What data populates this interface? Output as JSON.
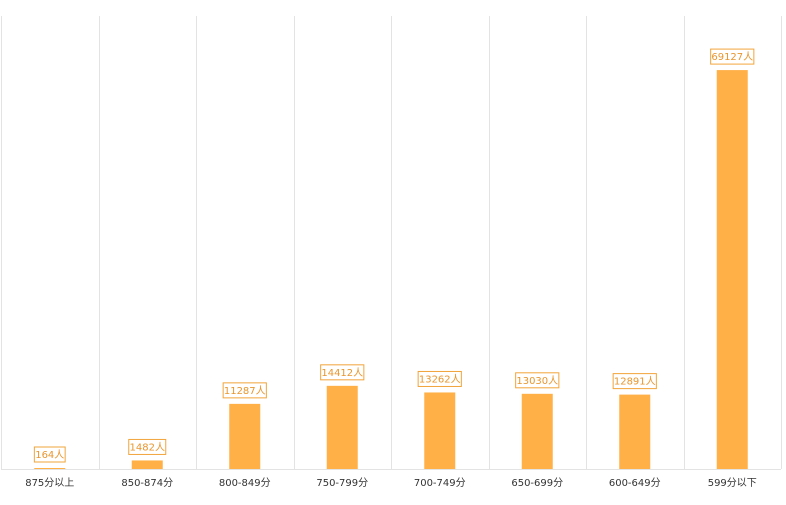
{
  "chart_data": {
    "type": "bar",
    "title": "",
    "xlabel": "",
    "ylabel": "",
    "categories": [
      "875分以上",
      "850-874分",
      "800-849分",
      "750-799分",
      "700-749分",
      "650-699分",
      "600-649分",
      "599分以下"
    ],
    "values": [
      164,
      1482,
      11287,
      14412,
      13262,
      13030,
      12891,
      69127
    ],
    "data_labels": [
      "164人",
      "1482人",
      "11287人",
      "14412人",
      "13262人",
      "13030人",
      "12891人",
      "69127人"
    ],
    "ylim": [
      0,
      78500
    ],
    "grid": "vertical-category-separators",
    "legend": "none"
  },
  "colors": {
    "bar": "#FFB046",
    "label_border": "#F2A43A",
    "label_text": "#E8962E",
    "grid": "#E3E3E3",
    "axis_text": "#333333"
  }
}
